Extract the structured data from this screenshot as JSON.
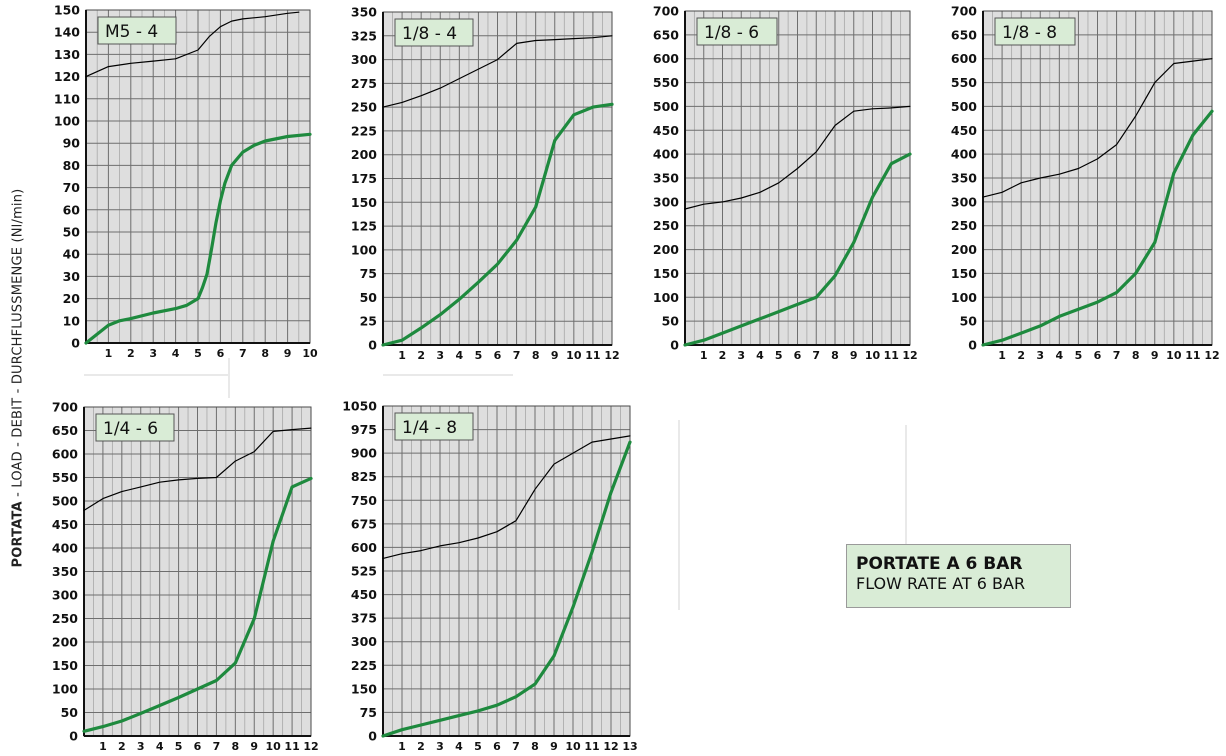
{
  "ylabel": {
    "bold": "PORTATA",
    "rest": " - LOAD - DEBIT - DURCHFLUSSMENGE  (Nl/min)"
  },
  "caption": {
    "line1": "PORTATE A 6 BAR",
    "line2": "FLOW RATE AT 6 BAR"
  },
  "colors": {
    "green": "#1e8a3e",
    "plot_bg": "#dedede",
    "grid": "#8c8c8c",
    "badge_bg": "#d9ecd6"
  },
  "chart_data": [
    {
      "type": "line",
      "title": "M5 - 4",
      "xlim": [
        0,
        10
      ],
      "ylim": [
        0,
        150
      ],
      "xticks": [
        1,
        2,
        3,
        4,
        5,
        6,
        7,
        8,
        9,
        10
      ],
      "yticks": [
        0,
        10,
        20,
        30,
        40,
        50,
        60,
        70,
        80,
        90,
        100,
        110,
        120,
        130,
        140,
        150
      ],
      "series": [
        {
          "color": "#000000",
          "x": [
            0,
            1,
            2,
            3,
            4,
            5,
            5.5,
            6,
            6.5,
            7,
            8,
            9,
            9.5
          ],
          "y": [
            120,
            124.5,
            126,
            127,
            128,
            132,
            138,
            142.5,
            145,
            146,
            147,
            148.5,
            149
          ]
        },
        {
          "color": "#1e8a3e",
          "x": [
            0,
            0.5,
            1,
            1.5,
            2,
            3,
            4,
            4.5,
            5,
            5.2,
            5.4,
            5.6,
            5.8,
            6,
            6.2,
            6.5,
            7,
            7.5,
            8,
            9,
            10
          ],
          "y": [
            0,
            4,
            8,
            10,
            11,
            13.5,
            15.5,
            17,
            20,
            25,
            31,
            42,
            54,
            64,
            72,
            80,
            86,
            89,
            91,
            93,
            94
          ]
        }
      ]
    },
    {
      "type": "line",
      "title": "1/8 - 4",
      "xlim": [
        0,
        12
      ],
      "ylim": [
        0,
        350
      ],
      "xticks": [
        1,
        2,
        3,
        4,
        5,
        6,
        7,
        8,
        9,
        10,
        11,
        12
      ],
      "yticks": [
        0,
        25,
        50,
        75,
        100,
        125,
        150,
        175,
        200,
        225,
        250,
        275,
        300,
        325,
        350
      ],
      "series": [
        {
          "color": "#000000",
          "x": [
            0,
            1,
            2,
            3,
            4,
            5,
            6,
            7,
            8,
            9,
            10,
            11,
            12
          ],
          "y": [
            250,
            255,
            262,
            270,
            280,
            290,
            300,
            317,
            320,
            321,
            322,
            323,
            325
          ]
        },
        {
          "color": "#1e8a3e",
          "x": [
            0,
            1,
            2,
            3,
            4,
            5,
            6,
            7,
            8,
            9,
            10,
            11,
            12
          ],
          "y": [
            0,
            5,
            18,
            32,
            48,
            66,
            85,
            110,
            145,
            215,
            242,
            250,
            253
          ]
        }
      ]
    },
    {
      "type": "line",
      "title": "1/8 - 6",
      "xlim": [
        0,
        12
      ],
      "ylim": [
        0,
        700
      ],
      "xticks": [
        1,
        2,
        3,
        4,
        5,
        6,
        7,
        8,
        9,
        10,
        11,
        12
      ],
      "yticks": [
        0,
        50,
        100,
        150,
        200,
        250,
        300,
        350,
        400,
        450,
        500,
        550,
        600,
        650,
        700
      ],
      "series": [
        {
          "color": "#000000",
          "x": [
            0,
            1,
            2,
            3,
            4,
            5,
            6,
            7,
            8,
            9,
            10,
            11,
            12
          ],
          "y": [
            285,
            295,
            300,
            308,
            320,
            340,
            370,
            405,
            460,
            490,
            495,
            497,
            500
          ]
        },
        {
          "color": "#1e8a3e",
          "x": [
            0,
            1,
            2,
            3,
            4,
            5,
            6,
            7,
            8,
            9,
            10,
            11,
            12
          ],
          "y": [
            0,
            10,
            25,
            40,
            55,
            70,
            85,
            100,
            145,
            215,
            310,
            380,
            400
          ]
        }
      ]
    },
    {
      "type": "line",
      "title": "1/8 - 8",
      "xlim": [
        0,
        12
      ],
      "ylim": [
        0,
        700
      ],
      "xticks": [
        1,
        2,
        3,
        4,
        5,
        6,
        7,
        8,
        9,
        10,
        11,
        12
      ],
      "yticks": [
        0,
        50,
        100,
        150,
        200,
        250,
        300,
        350,
        400,
        450,
        500,
        550,
        600,
        650,
        700
      ],
      "series": [
        {
          "color": "#000000",
          "x": [
            0,
            1,
            2,
            3,
            4,
            5,
            6,
            7,
            8,
            9,
            10,
            11,
            12
          ],
          "y": [
            310,
            320,
            340,
            350,
            358,
            370,
            390,
            420,
            480,
            550,
            590,
            595,
            600
          ]
        },
        {
          "color": "#1e8a3e",
          "x": [
            0,
            1,
            2,
            3,
            4,
            5,
            6,
            7,
            8,
            9,
            10,
            11,
            12
          ],
          "y": [
            0,
            10,
            25,
            40,
            60,
            75,
            90,
            110,
            150,
            215,
            360,
            440,
            490
          ]
        }
      ]
    },
    {
      "type": "line",
      "title": "1/4 - 6",
      "xlim": [
        0,
        12
      ],
      "ylim": [
        0,
        700
      ],
      "xticks": [
        1,
        2,
        3,
        4,
        5,
        6,
        7,
        8,
        9,
        10,
        11,
        12
      ],
      "yticks": [
        0,
        50,
        100,
        150,
        200,
        250,
        300,
        350,
        400,
        450,
        500,
        550,
        600,
        650,
        700
      ],
      "series": [
        {
          "color": "#000000",
          "x": [
            0,
            1,
            2,
            3,
            4,
            5,
            6,
            7,
            8,
            9,
            10,
            11,
            12
          ],
          "y": [
            480,
            505,
            520,
            530,
            540,
            545,
            548,
            550,
            585,
            605,
            648,
            652,
            655
          ]
        },
        {
          "color": "#1e8a3e",
          "x": [
            0,
            1,
            2,
            3,
            4,
            5,
            6,
            7,
            8,
            9,
            10,
            11,
            12
          ],
          "y": [
            10,
            20,
            32,
            48,
            65,
            82,
            100,
            118,
            155,
            250,
            415,
            530,
            548
          ]
        }
      ]
    },
    {
      "type": "line",
      "title": "1/4 - 8",
      "xlim": [
        0,
        13
      ],
      "ylim": [
        0,
        1050
      ],
      "xticks": [
        1,
        2,
        3,
        4,
        5,
        6,
        7,
        8,
        9,
        10,
        11,
        12,
        13
      ],
      "yticks": [
        0,
        75,
        150,
        225,
        300,
        375,
        450,
        525,
        600,
        675,
        750,
        825,
        900,
        975,
        1050
      ],
      "series": [
        {
          "color": "#000000",
          "x": [
            0,
            1,
            2,
            3,
            4,
            5,
            6,
            7,
            8,
            9,
            10,
            11,
            12,
            13
          ],
          "y": [
            565,
            580,
            590,
            605,
            615,
            630,
            650,
            685,
            785,
            865,
            900,
            935,
            945,
            955
          ]
        },
        {
          "color": "#1e8a3e",
          "x": [
            0,
            1,
            2,
            3,
            4,
            5,
            6,
            7,
            8,
            9,
            10,
            11,
            12,
            13
          ],
          "y": [
            0,
            20,
            35,
            50,
            65,
            80,
            98,
            125,
            165,
            255,
            410,
            585,
            775,
            935
          ]
        }
      ]
    }
  ]
}
